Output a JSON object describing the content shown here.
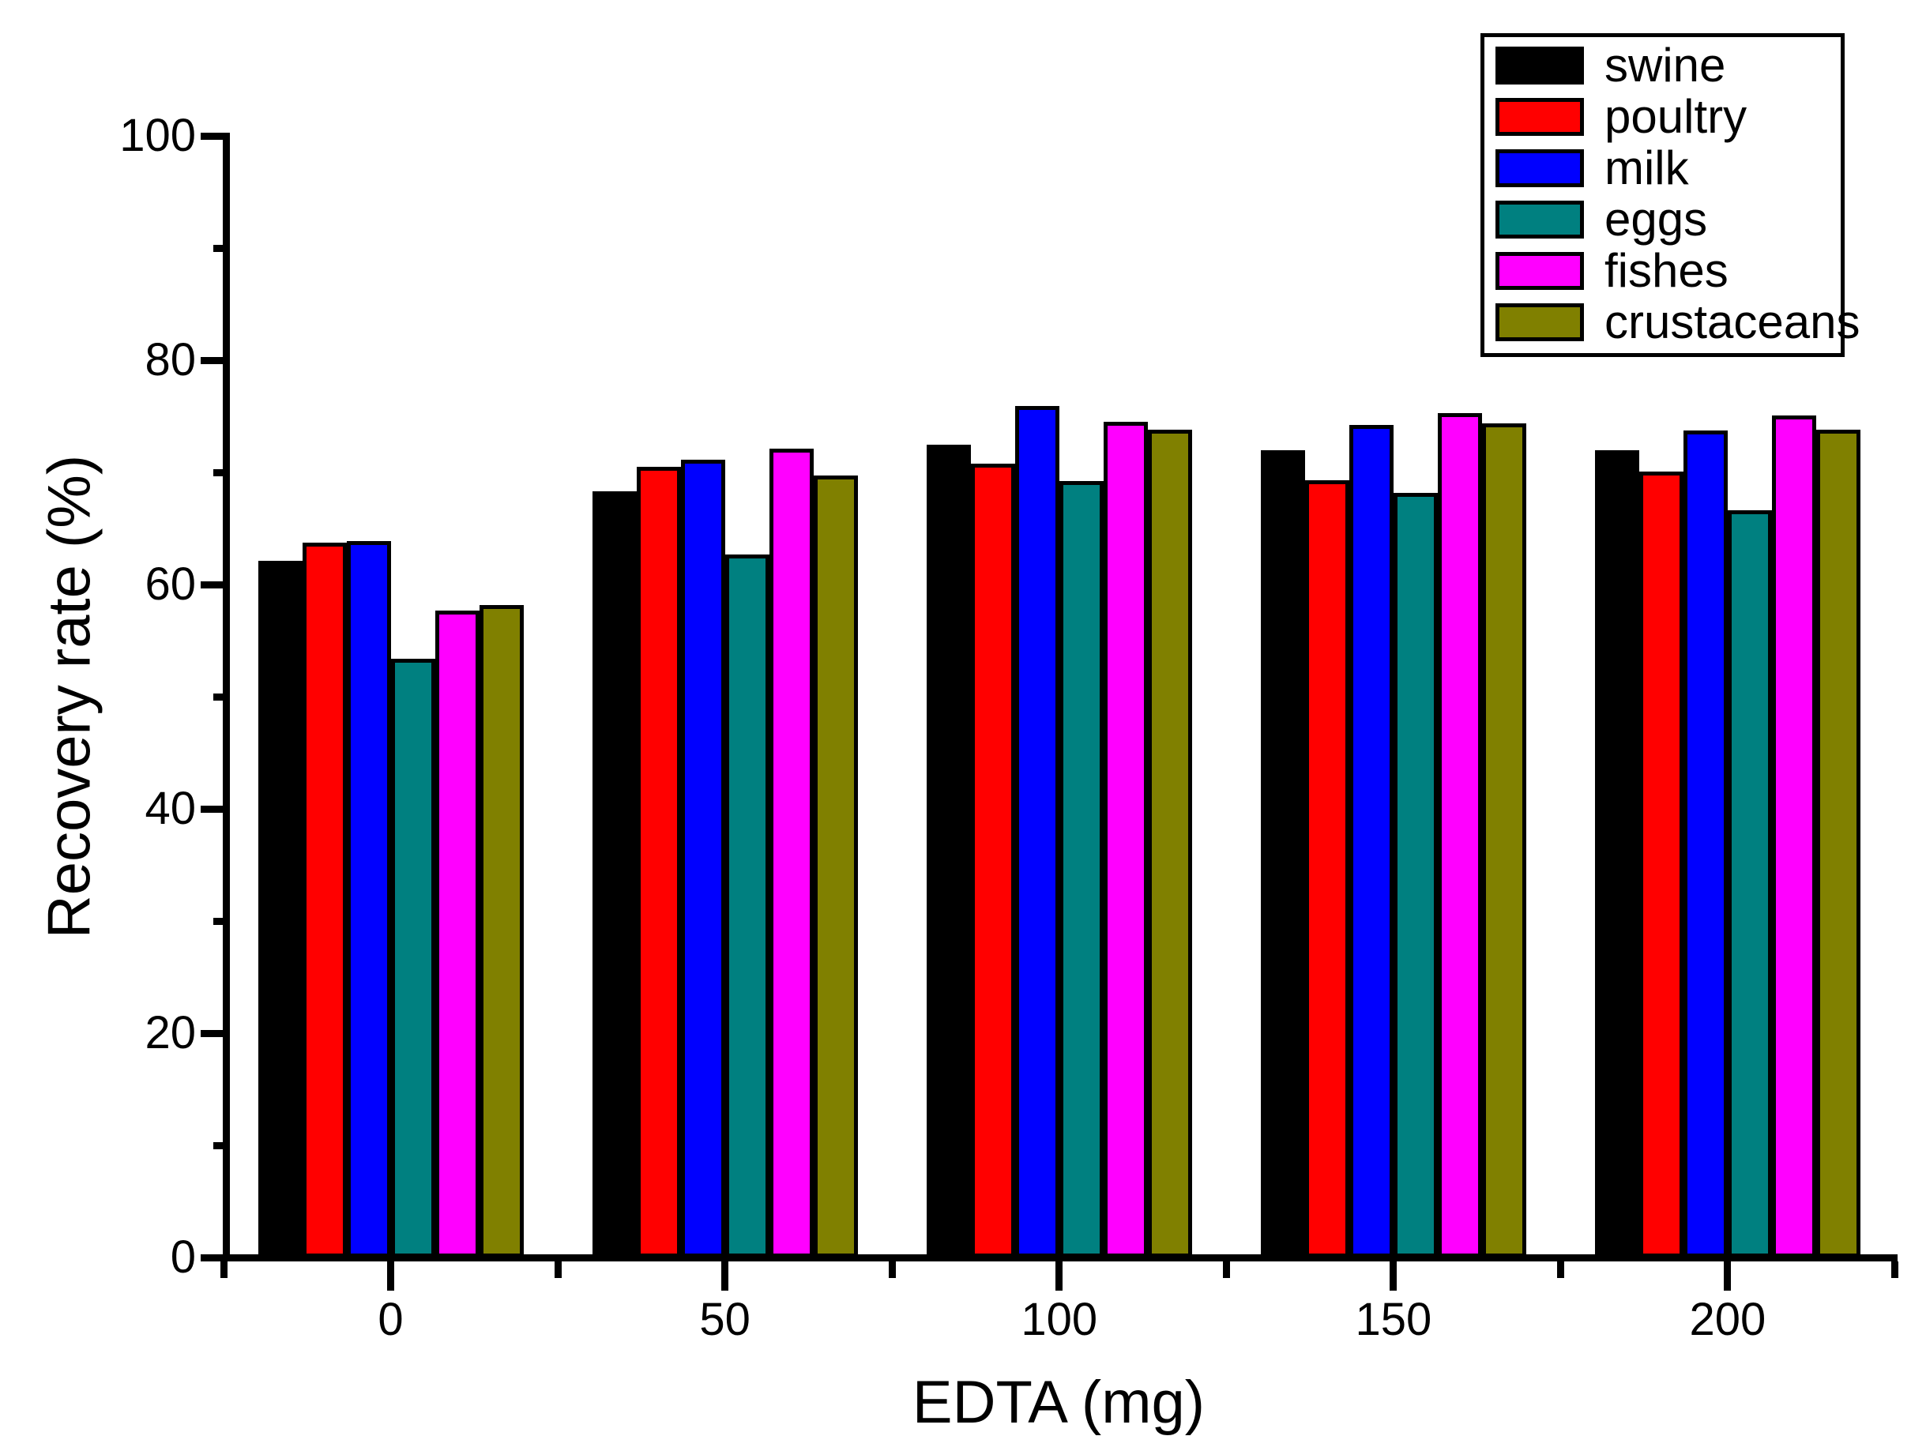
{
  "chart_data": {
    "type": "bar",
    "title": "",
    "xlabel": "EDTA (mg)",
    "ylabel": "Recovery rate (%)",
    "categories": [
      "0",
      "50",
      "100",
      "150",
      "200"
    ],
    "category_x_values": [
      0,
      50,
      100,
      150,
      200
    ],
    "series": [
      {
        "name": "swine",
        "color": "#000000",
        "values": [
          62.1,
          68.3,
          72.5,
          72.0,
          72.0
        ]
      },
      {
        "name": "poultry",
        "color": "#FF0000",
        "values": [
          63.7,
          70.5,
          70.8,
          69.3,
          70.1
        ]
      },
      {
        "name": "milk",
        "color": "#0000FF",
        "values": [
          63.9,
          71.1,
          75.9,
          74.2,
          73.7
        ]
      },
      {
        "name": "eggs",
        "color": "#008080",
        "values": [
          53.4,
          62.7,
          69.2,
          68.2,
          66.6
        ]
      },
      {
        "name": "fishes",
        "color": "#FF00FF",
        "values": [
          57.7,
          72.1,
          74.5,
          75.3,
          75.1
        ]
      },
      {
        "name": "crustaceans",
        "color": "#808000",
        "values": [
          58.2,
          69.7,
          73.8,
          74.4,
          73.8
        ]
      }
    ],
    "ylim": [
      0,
      100
    ],
    "xlim": [
      -25,
      225
    ],
    "y_major_ticks": [
      0,
      20,
      40,
      60,
      80,
      100
    ],
    "y_minor_ticks": [
      10,
      30,
      50,
      70,
      90
    ],
    "x_minor_ticks": [
      -25,
      25,
      75,
      125,
      175,
      225
    ],
    "grid": false,
    "legend_position": "top-right",
    "bar_outline_color": "#000000",
    "axis_color": "#000000",
    "background_color": "#ffffff"
  }
}
